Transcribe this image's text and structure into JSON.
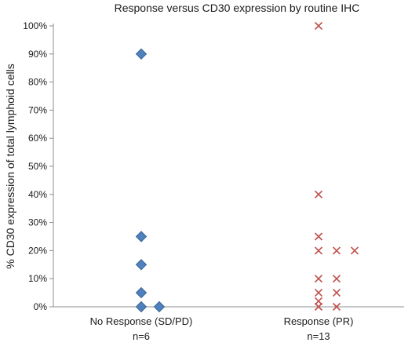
{
  "chart_data": {
    "type": "scatter",
    "title": "Response versus CD30 expression by routine IHC",
    "ylabel": "% CD30 expression of total lymphoid cells",
    "xlabel": "",
    "ylim": [
      0,
      100
    ],
    "yticks": [
      "0%",
      "10%",
      "20%",
      "30%",
      "40%",
      "50%",
      "60%",
      "70%",
      "80%",
      "90%",
      "100%"
    ],
    "grid": false,
    "categories": [
      {
        "label": "No Response (SD/PD)",
        "n_label": "n=6"
      },
      {
        "label": "Response (PR)",
        "n_label": "n=13"
      }
    ],
    "series": [
      {
        "category_index": 0,
        "marker": "diamond",
        "color": "#4f81bd",
        "points": [
          {
            "y": 90,
            "col": 0
          },
          {
            "y": 25,
            "col": 0
          },
          {
            "y": 15,
            "col": 0
          },
          {
            "y": 5,
            "col": 0
          },
          {
            "y": 0,
            "col": 0
          },
          {
            "y": 0,
            "col": 1
          }
        ]
      },
      {
        "category_index": 1,
        "marker": "x",
        "color": "#c0504d",
        "points": [
          {
            "y": 100,
            "col": 0
          },
          {
            "y": 40,
            "col": 0
          },
          {
            "y": 25,
            "col": 0
          },
          {
            "y": 20,
            "col": 0
          },
          {
            "y": 20,
            "col": 1
          },
          {
            "y": 20,
            "col": 2
          },
          {
            "y": 10,
            "col": 0
          },
          {
            "y": 10,
            "col": 1
          },
          {
            "y": 5,
            "col": 0
          },
          {
            "y": 5,
            "col": 1
          },
          {
            "y": 2,
            "col": 0
          },
          {
            "y": 0,
            "col": 0
          },
          {
            "y": 0,
            "col": 1
          }
        ]
      }
    ]
  }
}
